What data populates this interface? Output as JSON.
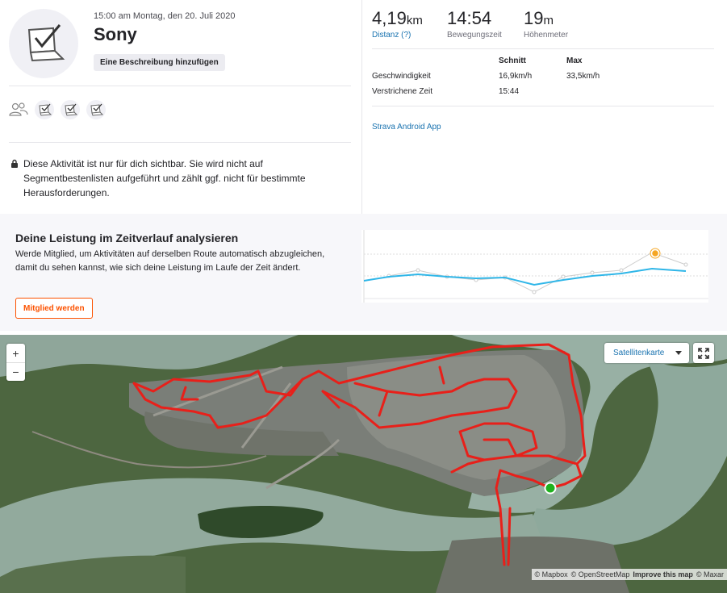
{
  "activity": {
    "datetime": "15:00 am Montag, den 20. Juli 2020",
    "title": "Sony",
    "add_description_label": "Eine Beschreibung hinzufügen",
    "privacy_text": "Diese Aktivität ist nur für dich sichtbar. Sie wird nicht auf Segmentbestenlisten aufgeführt und zählt ggf. nicht für bestimmte Herausforderungen."
  },
  "stats": {
    "distance": {
      "value": "4,19",
      "unit": "km",
      "label": "Distanz (?)"
    },
    "moving_time": {
      "value": "14:54",
      "label": "Bewegungszeit"
    },
    "elevation": {
      "value": "19",
      "unit": "m",
      "label": "Höhenmeter"
    }
  },
  "details_table": {
    "headers": [
      "",
      "Schnitt",
      "Max"
    ],
    "rows": [
      [
        "Geschwindigkeit",
        "16,9km/h",
        "33,5km/h"
      ],
      [
        "Verstrichene Zeit",
        "15:44",
        ""
      ]
    ]
  },
  "device_link": "Strava Android App",
  "performance": {
    "title": "Deine Leistung im Zeitverlauf analysieren",
    "text": "Werde Mitglied, um Aktivitäten auf derselben Route automatisch abzugleichen, damit du sehen kannst, wie sich deine Leistung im Laufe der Zeit ändert.",
    "join_label": "Mitglied werden"
  },
  "map": {
    "zoom_in": "+",
    "zoom_out": "−",
    "style_label": "Satellitenkarte",
    "attribution": {
      "mapbox": "© Mapbox",
      "osm": "© OpenStreetMap",
      "improve": "Improve this map",
      "maxar": "© Maxar"
    }
  },
  "icons": {
    "avatar": "laptop-check-icon",
    "lock": "lock-icon",
    "athletes": "athletes-icon",
    "device": "device-check-icon",
    "fullscreen": "fullscreen-icon"
  },
  "colors": {
    "accent": "#fc5200",
    "link": "#1a73b0",
    "route": "#e8201a",
    "chart_line": "#2fb6e8"
  }
}
